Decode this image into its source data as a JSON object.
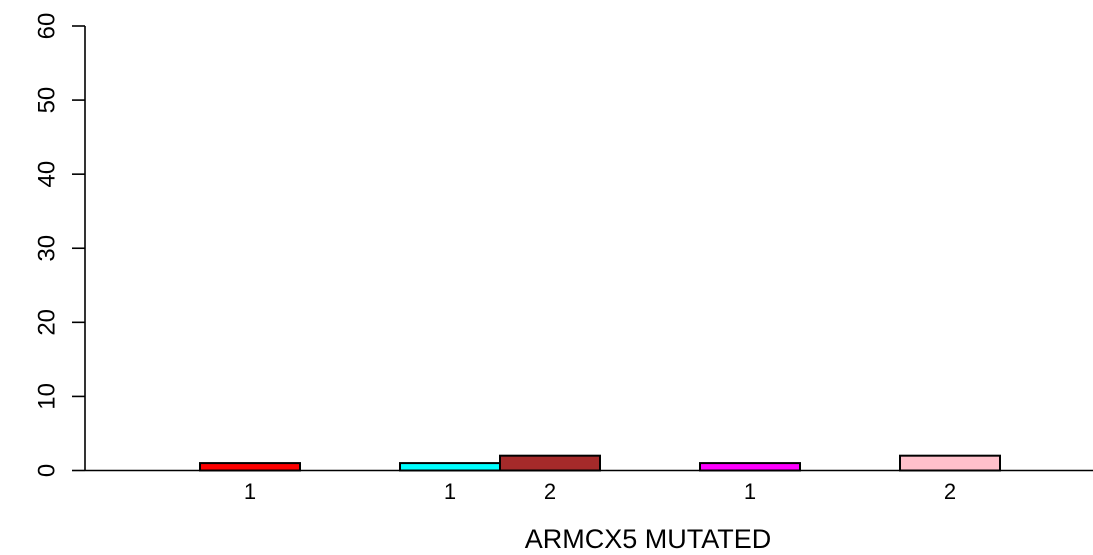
{
  "chart_data": {
    "type": "bar",
    "xlabel": "ARMCX5 MUTATED",
    "ylabel": "",
    "ylim": [
      0,
      60
    ],
    "yticks": [
      0,
      10,
      20,
      30,
      40,
      50,
      60
    ],
    "grid": false,
    "bars": [
      {
        "label": "1",
        "value": 1,
        "color": "#ff0000"
      },
      {
        "label": "1",
        "value": 1,
        "color": "#00ffff"
      },
      {
        "label": "2",
        "value": 2,
        "color": "#a52a2a"
      },
      {
        "label": "1",
        "value": 1,
        "color": "#ff00ff"
      },
      {
        "label": "2",
        "value": 2,
        "color": "#ffc0cb"
      }
    ]
  }
}
